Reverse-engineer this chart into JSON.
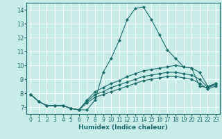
{
  "xlabel": "Humidex (Indice chaleur)",
  "bg_color": "#c8ece8",
  "grid_color": "#ffffff",
  "line_color": "#1a6b6b",
  "xlim": [
    -0.5,
    23.5
  ],
  "ylim": [
    6.5,
    14.5
  ],
  "xticks": [
    0,
    1,
    2,
    3,
    4,
    5,
    6,
    7,
    8,
    9,
    10,
    11,
    12,
    13,
    14,
    15,
    16,
    17,
    18,
    19,
    20,
    21,
    22,
    23
  ],
  "yticks": [
    7,
    8,
    9,
    10,
    11,
    12,
    13,
    14
  ],
  "curves": [
    {
      "x": [
        0,
        1,
        2,
        3,
        4,
        5,
        6,
        7,
        8,
        9,
        10,
        11,
        12,
        13,
        14,
        15,
        16,
        17,
        18,
        19,
        20,
        21,
        22,
        23
      ],
      "y": [
        7.9,
        7.4,
        7.1,
        7.1,
        7.1,
        6.9,
        6.8,
        6.8,
        7.5,
        9.5,
        10.5,
        11.8,
        13.3,
        14.1,
        14.2,
        13.3,
        12.2,
        11.1,
        10.5,
        9.9,
        9.8,
        8.5,
        8.4,
        8.7
      ]
    },
    {
      "x": [
        0,
        1,
        2,
        3,
        4,
        5,
        6,
        7,
        8,
        9,
        10,
        11,
        12,
        13,
        14,
        15,
        16,
        17,
        18,
        19,
        20,
        21,
        22,
        23
      ],
      "y": [
        7.9,
        7.4,
        7.1,
        7.1,
        7.1,
        6.9,
        6.8,
        7.5,
        8.1,
        8.4,
        8.7,
        8.9,
        9.2,
        9.4,
        9.6,
        9.7,
        9.8,
        9.9,
        10.0,
        9.9,
        9.8,
        9.5,
        8.5,
        8.7
      ]
    },
    {
      "x": [
        0,
        1,
        2,
        3,
        4,
        5,
        6,
        7,
        8,
        9,
        10,
        11,
        12,
        13,
        14,
        15,
        16,
        17,
        18,
        19,
        20,
        21,
        22,
        23
      ],
      "y": [
        7.9,
        7.4,
        7.1,
        7.1,
        7.1,
        6.9,
        6.8,
        7.4,
        7.9,
        8.1,
        8.4,
        8.6,
        8.8,
        9.0,
        9.2,
        9.3,
        9.4,
        9.5,
        9.5,
        9.4,
        9.3,
        9.0,
        8.4,
        8.6
      ]
    },
    {
      "x": [
        0,
        1,
        2,
        3,
        4,
        5,
        6,
        7,
        8,
        9,
        10,
        11,
        12,
        13,
        14,
        15,
        16,
        17,
        18,
        19,
        20,
        21,
        22,
        23
      ],
      "y": [
        7.9,
        7.4,
        7.1,
        7.1,
        7.1,
        6.9,
        6.8,
        7.3,
        7.7,
        7.9,
        8.1,
        8.3,
        8.5,
        8.7,
        8.9,
        9.0,
        9.1,
        9.2,
        9.2,
        9.1,
        9.0,
        8.7,
        8.3,
        8.5
      ]
    }
  ]
}
